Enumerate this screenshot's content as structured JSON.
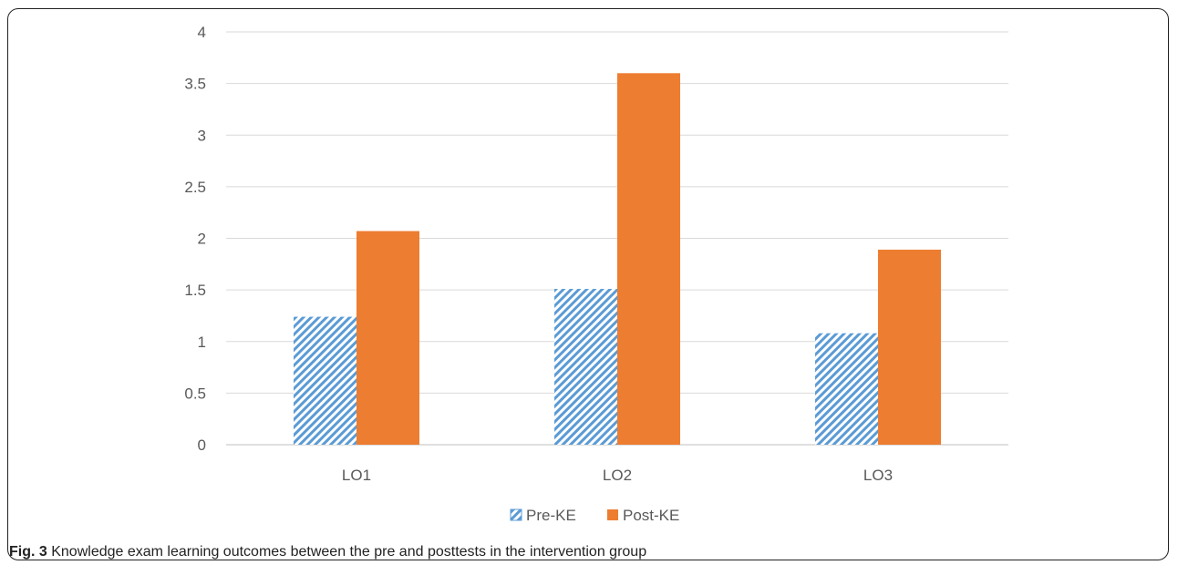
{
  "figure": {
    "label": "Fig. 3",
    "caption": "Knowledge exam learning outcomes between the pre and posttests in the intervention group"
  },
  "chart_data": {
    "type": "bar",
    "categories": [
      "LO1",
      "LO2",
      "LO3"
    ],
    "series": [
      {
        "name": "Pre-KE",
        "values": [
          1.24,
          1.51,
          1.08
        ],
        "color": "#5b9bd5",
        "pattern": "diagonal-hatch"
      },
      {
        "name": "Post-KE",
        "values": [
          2.07,
          3.6,
          1.89
        ],
        "color": "#ed7d31",
        "pattern": "solid"
      }
    ],
    "yticks": [
      "0",
      "0.5",
      "1",
      "1.5",
      "2",
      "2.5",
      "3",
      "3.5",
      "4"
    ],
    "ylim": [
      0,
      4
    ],
    "grid": true,
    "legend_position": "bottom",
    "title": "",
    "xlabel": "",
    "ylabel": ""
  }
}
